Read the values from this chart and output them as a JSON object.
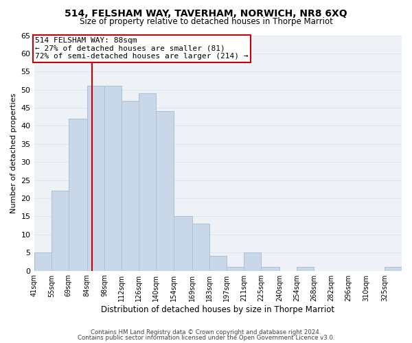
{
  "title": "514, FELSHAM WAY, TAVERHAM, NORWICH, NR8 6XQ",
  "subtitle": "Size of property relative to detached houses in Thorpe Marriot",
  "xlabel": "Distribution of detached houses by size in Thorpe Marriot",
  "ylabel": "Number of detached properties",
  "bar_color": "#c8d8e8",
  "bar_edge_color": "#a8c0d8",
  "bin_labels": [
    "41sqm",
    "55sqm",
    "69sqm",
    "84sqm",
    "98sqm",
    "112sqm",
    "126sqm",
    "140sqm",
    "154sqm",
    "169sqm",
    "183sqm",
    "197sqm",
    "211sqm",
    "225sqm",
    "240sqm",
    "254sqm",
    "268sqm",
    "282sqm",
    "296sqm",
    "310sqm",
    "325sqm"
  ],
  "bin_values": [
    5,
    22,
    42,
    51,
    51,
    47,
    49,
    44,
    15,
    13,
    4,
    1,
    5,
    1,
    0,
    1,
    0,
    0,
    0,
    0,
    1
  ],
  "ylim": [
    0,
    65
  ],
  "yticks": [
    0,
    5,
    10,
    15,
    20,
    25,
    30,
    35,
    40,
    45,
    50,
    55,
    60,
    65
  ],
  "property_line_x": 88,
  "annotation_title": "514 FELSHAM WAY: 88sqm",
  "annotation_line1": "← 27% of detached houses are smaller (81)",
  "annotation_line2": "72% of semi-detached houses are larger (214) →",
  "annotation_box_color": "#ffffff",
  "annotation_box_edge": "#cc0000",
  "property_line_color": "#cc0000",
  "grid_color": "#dce8f0",
  "footer_line1": "Contains HM Land Registry data © Crown copyright and database right 2024.",
  "footer_line2": "Contains public sector information licensed under the Open Government Licence v3.0.",
  "bin_edges": [
    41,
    55,
    69,
    84,
    98,
    112,
    126,
    140,
    154,
    169,
    183,
    197,
    211,
    225,
    240,
    254,
    268,
    282,
    296,
    310,
    325,
    339
  ]
}
